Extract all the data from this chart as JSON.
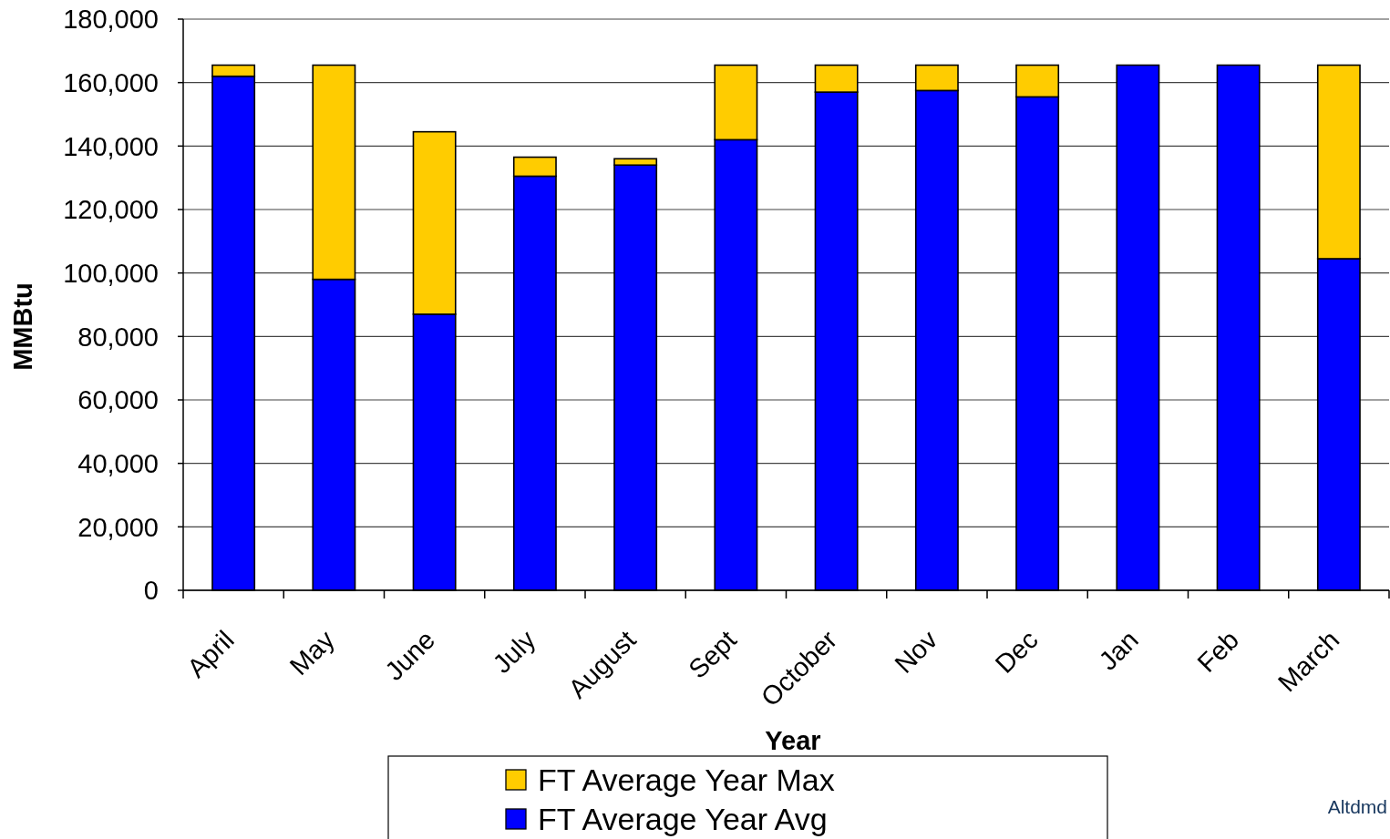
{
  "chart_data": {
    "type": "bar",
    "stacked": true,
    "xlabel": "Year",
    "ylabel": "MMBtu",
    "categories": [
      "April",
      "May",
      "June",
      "July",
      "August",
      "Sept",
      "October",
      "Nov",
      "Dec",
      "Jan",
      "Feb",
      "March"
    ],
    "series": [
      {
        "name": "FT Average Year Avg",
        "color": "#0000ff",
        "values": [
          162000,
          98000,
          87000,
          130500,
          134000,
          142000,
          157000,
          157500,
          155500,
          165500,
          165500,
          104500
        ]
      },
      {
        "name": "FT Average Year Max",
        "color": "#ffcc00",
        "values": [
          3500,
          67500,
          57500,
          6000,
          2000,
          23500,
          8500,
          8000,
          10000,
          0,
          0,
          61000
        ]
      }
    ],
    "ylim": [
      0,
      180000
    ],
    "yticks": [
      {
        "value": 0,
        "label": "0"
      },
      {
        "value": 20000,
        "label": "20,000"
      },
      {
        "value": 40000,
        "label": "40,000"
      },
      {
        "value": 60000,
        "label": "60,000"
      },
      {
        "value": 80000,
        "label": "80,000"
      },
      {
        "value": 100000,
        "label": "100,000"
      },
      {
        "value": 120000,
        "label": "120,000"
      },
      {
        "value": 140000,
        "label": "140,000"
      },
      {
        "value": 160000,
        "label": "160,000"
      },
      {
        "value": 180000,
        "label": "180,000"
      }
    ],
    "grid": "y",
    "legend": "bottom",
    "annotations": [
      "Altdmd"
    ]
  }
}
